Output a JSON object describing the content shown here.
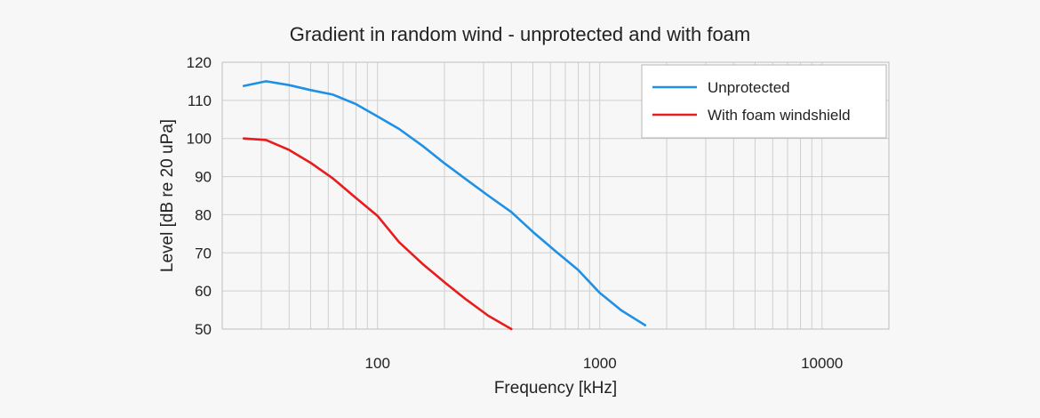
{
  "chart_data": {
    "type": "line",
    "title": "Gradient in random wind - unprotected and with foam",
    "xlabel": "Frequency [kHz]",
    "ylabel": "Level [dB re 20 uPa]",
    "x_scale": "log",
    "xlim": [
      20,
      20000
    ],
    "ylim": [
      50,
      120
    ],
    "x_ticks": [
      100,
      1000,
      10000
    ],
    "x_tick_labels": [
      "100",
      "1000",
      "10000"
    ],
    "y_ticks": [
      50,
      60,
      70,
      80,
      90,
      100,
      110,
      120
    ],
    "y_tick_labels": [
      "50",
      "60",
      "70",
      "80",
      "90",
      "100",
      "110",
      "120"
    ],
    "grid": true,
    "legend_position": "top-right",
    "series": [
      {
        "name": "Unprotected",
        "color": "#1e90e6",
        "x": [
          25,
          31.5,
          40,
          50,
          63,
          80,
          100,
          125,
          160,
          200,
          250,
          315,
          400,
          500,
          630,
          800,
          1000,
          1250,
          1600
        ],
        "y": [
          113.8,
          115,
          114,
          112.7,
          111.5,
          109,
          105.8,
          102.5,
          98,
          93.5,
          89.3,
          85,
          80.7,
          75.5,
          70.5,
          65.5,
          59.5,
          54.9,
          51
        ]
      },
      {
        "name": "With foam windshield",
        "color": "#e81c1c",
        "x": [
          25,
          31.5,
          40,
          50,
          63,
          80,
          100,
          125,
          160,
          200,
          250,
          315,
          400
        ],
        "y": [
          100,
          99.6,
          97,
          93.6,
          89.5,
          84.4,
          79.7,
          72.8,
          67,
          62.3,
          57.8,
          53.5,
          50
        ]
      }
    ]
  }
}
